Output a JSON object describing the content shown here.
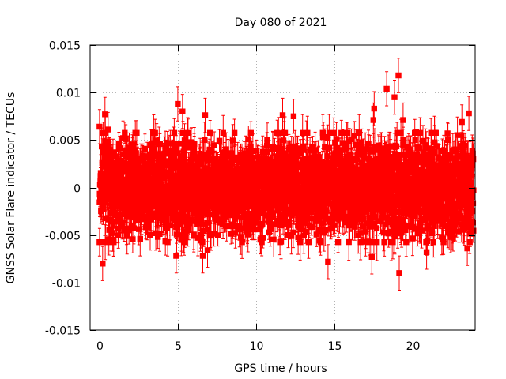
{
  "chart_data": {
    "type": "scatter",
    "title": "Day 080 of 2021",
    "xlabel": "GPS time / hours",
    "ylabel": "GNSS Solar Flare indicator / TECUs",
    "xlim": [
      -0.6,
      24
    ],
    "ylim": [
      -0.015,
      0.015
    ],
    "x_ticks": [
      0,
      5,
      10,
      15,
      20
    ],
    "x_tick_labels": [
      "0",
      "5",
      "10",
      "15",
      "20"
    ],
    "y_ticks": [
      -0.015,
      -0.01,
      -0.005,
      0,
      0.005,
      0.01,
      0.015
    ],
    "y_tick_labels": [
      "-0.015",
      "-0.01",
      "-0.005",
      "0",
      "0.005",
      "0.01",
      "0.015"
    ],
    "grid": true,
    "legend": "none",
    "series": [
      {
        "marker": "filled-square",
        "error_bars": true,
        "color": "#ff0000",
        "typical_value_range": [
          -0.005,
          0.005
        ],
        "typical_error": 0.0015,
        "x_spacing_hours": 0.0083,
        "points": [
          {
            "x": 0.0,
            "y": 0.0064
          },
          {
            "x": 0.05,
            "y": -0.0013
          },
          {
            "x": 0.2,
            "y": -0.008
          },
          {
            "x": 0.35,
            "y": 0.0077
          },
          {
            "x": 0.55,
            "y": 0.0061
          },
          {
            "x": 0.9,
            "y": -0.0055
          },
          {
            "x": 1.5,
            "y": 0.0052
          },
          {
            "x": 2.6,
            "y": -0.0054
          },
          {
            "x": 3.6,
            "y": -0.0048
          },
          {
            "x": 4.9,
            "y": -0.0072
          },
          {
            "x": 5.0,
            "y": 0.0088
          },
          {
            "x": 5.3,
            "y": 0.008
          },
          {
            "x": 6.6,
            "y": -0.0072
          },
          {
            "x": 6.75,
            "y": 0.0076
          },
          {
            "x": 6.9,
            "y": -0.0066
          },
          {
            "x": 11.6,
            "y": -0.0057
          },
          {
            "x": 11.7,
            "y": 0.0076
          },
          {
            "x": 12.4,
            "y": 0.0075
          },
          {
            "x": 14.6,
            "y": -0.0078
          },
          {
            "x": 17.55,
            "y": 0.0083
          },
          {
            "x": 17.5,
            "y": 0.0071
          },
          {
            "x": 17.4,
            "y": -0.0073
          },
          {
            "x": 18.35,
            "y": 0.0104
          },
          {
            "x": 18.85,
            "y": 0.0095
          },
          {
            "x": 19.1,
            "y": 0.0118
          },
          {
            "x": 19.15,
            "y": -0.009
          },
          {
            "x": 19.4,
            "y": 0.0071
          },
          {
            "x": 20.9,
            "y": -0.0068
          },
          {
            "x": 23.15,
            "y": 0.0069
          },
          {
            "x": 23.6,
            "y": 0.0078
          },
          {
            "x": 23.5,
            "y": -0.0064
          }
        ]
      }
    ]
  }
}
